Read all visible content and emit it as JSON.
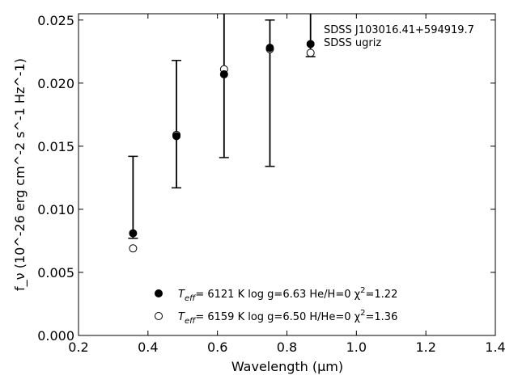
{
  "chart_data": {
    "type": "scatter",
    "title": "",
    "xlabel": "Wavelength (μm)",
    "ylabel": "f_ν (10^-26 erg cm^-2 s^-1 Hz^-1)",
    "xlim": [
      0.2,
      1.4
    ],
    "ylim": [
      0.0,
      0.0255
    ],
    "xticks": [
      0.2,
      0.4,
      0.6,
      0.8,
      1.0,
      1.2,
      1.4
    ],
    "yticks": [
      0.0,
      0.005,
      0.01,
      0.015,
      0.02,
      0.025
    ],
    "xtick_labels": [
      "0.2",
      "0.4",
      "0.6",
      "0.8",
      "1.0",
      "1.2",
      "1.4"
    ],
    "ytick_labels": [
      "0.000",
      "0.005",
      "0.010",
      "0.015",
      "0.020",
      "0.025"
    ],
    "grid": false,
    "annotations": [
      "SDSS J103016.41+594919.7",
      "SDSS ugriz"
    ],
    "observed": {
      "x": [
        0.357,
        0.482,
        0.619,
        0.751,
        0.868
      ],
      "y": [
        0.0081,
        0.0158,
        0.0207,
        0.0228,
        0.0231
      ],
      "err_low": [
        0.0077,
        0.0117,
        0.0141,
        0.0134,
        0.0221
      ],
      "err_high": [
        0.0142,
        0.0218,
        0.0255,
        0.025,
        0.0255
      ],
      "cap_low": [
        true,
        true,
        true,
        true,
        true
      ],
      "cap_high": [
        true,
        true,
        false,
        true,
        false
      ]
    },
    "series": [
      {
        "marker": "filled",
        "x": [
          0.357,
          0.482,
          0.619,
          0.751,
          0.868
        ],
        "y": [
          0.0081,
          0.0158,
          0.0207,
          0.0228,
          0.0231
        ],
        "legend": {
          "teff_label": "T",
          "teff_sub": "eff",
          "text": "=  6121 K  log g=6.63  He/H=0  χ",
          "chi_sup": "2",
          "chi_val": "=1.22"
        }
      },
      {
        "marker": "open",
        "x": [
          0.357,
          0.482,
          0.619,
          0.751,
          0.868
        ],
        "y": [
          0.0069,
          0.0159,
          0.0211,
          0.0227,
          0.0224
        ],
        "legend": {
          "teff_label": "T",
          "teff_sub": "eff",
          "text": "=  6159 K  log g=6.50  H/He=0  χ",
          "chi_sup": "2",
          "chi_val": "=1.36"
        }
      }
    ]
  }
}
